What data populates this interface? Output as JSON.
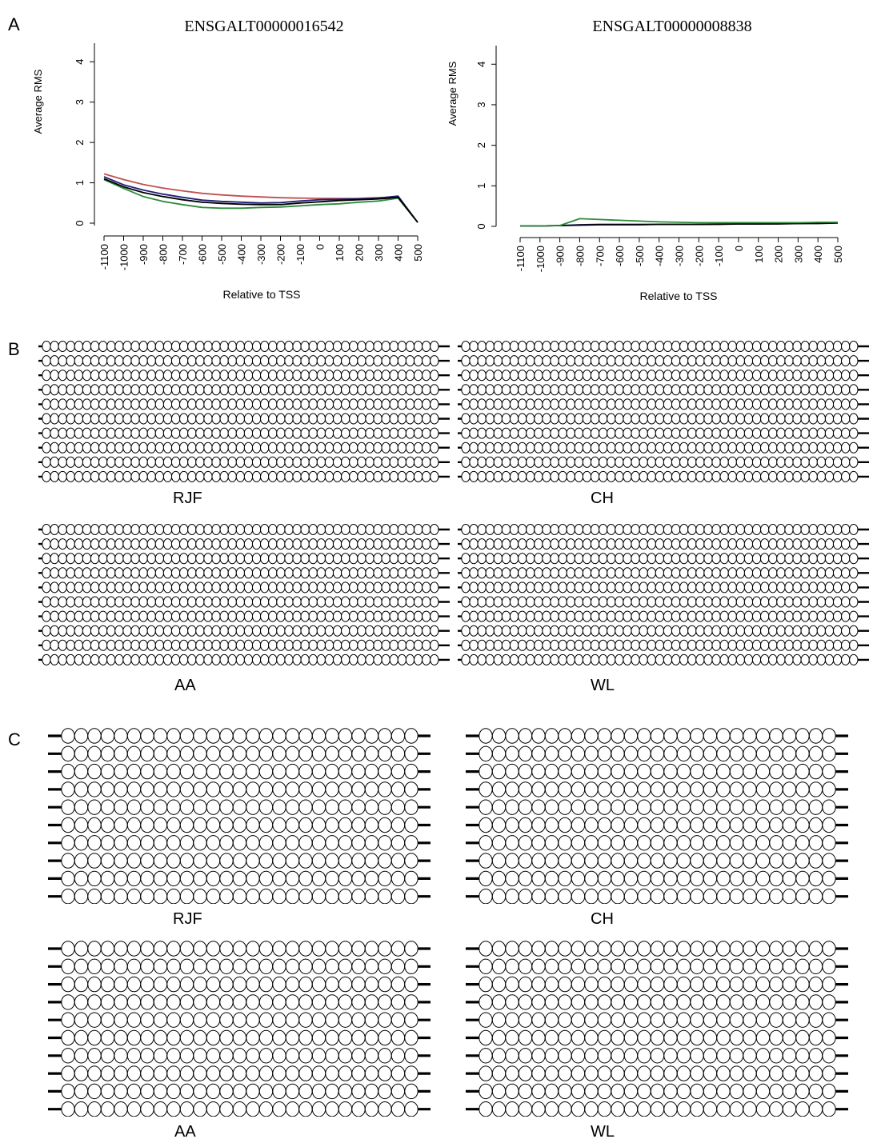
{
  "panels": {
    "a": "A",
    "b": "B",
    "c": "C"
  },
  "chart_data": [
    {
      "type": "line",
      "title": "ENSGALT00000016542",
      "xlabel": "Relative to TSS",
      "ylabel": "Average RMS",
      "x": [
        -1100,
        -1000,
        -900,
        -800,
        -700,
        -600,
        -500,
        -400,
        -300,
        -200,
        -100,
        0,
        100,
        200,
        300,
        400,
        500
      ],
      "x_tick_labels": [
        "-1100",
        "-1000",
        "-900",
        "-800",
        "-700",
        "-600",
        "-500",
        "-400",
        "-300",
        "-200",
        "-100",
        "0",
        "100",
        "200",
        "300",
        "400",
        "500"
      ],
      "y_ticks": [
        "0",
        "1",
        "2",
        "3",
        "4"
      ],
      "ylim": [
        0,
        4.4
      ],
      "xlim": [
        -1100,
        500
      ],
      "series": [
        {
          "color": "#c0504d",
          "values": [
            1.22,
            1.08,
            0.96,
            0.87,
            0.8,
            0.74,
            0.7,
            0.67,
            0.65,
            0.63,
            0.62,
            0.615,
            0.61,
            0.615,
            0.63,
            0.65,
            0.02
          ]
        },
        {
          "color": "#1f1f7a",
          "values": [
            1.15,
            0.95,
            0.82,
            0.72,
            0.64,
            0.57,
            0.54,
            0.52,
            0.5,
            0.51,
            0.55,
            0.58,
            0.59,
            0.6,
            0.62,
            0.67,
            0.02
          ]
        },
        {
          "color": "#2e8b3a",
          "values": [
            1.08,
            0.86,
            0.66,
            0.54,
            0.46,
            0.39,
            0.37,
            0.37,
            0.39,
            0.4,
            0.43,
            0.46,
            0.48,
            0.52,
            0.55,
            0.62,
            0.02
          ]
        },
        {
          "color": "#000000",
          "values": [
            1.1,
            0.9,
            0.76,
            0.66,
            0.58,
            0.52,
            0.49,
            0.47,
            0.46,
            0.46,
            0.5,
            0.53,
            0.56,
            0.58,
            0.6,
            0.64,
            0.02
          ]
        }
      ]
    },
    {
      "type": "line",
      "title": "ENSGALT00000008838",
      "xlabel": "Relative to TSS",
      "ylabel": "Average RMS",
      "x": [
        -1100,
        -1000,
        -900,
        -800,
        -700,
        -600,
        -500,
        -400,
        -300,
        -200,
        -100,
        0,
        100,
        200,
        300,
        400,
        500
      ],
      "x_tick_labels": [
        "-1100",
        "-1000",
        "-900",
        "-800",
        "-700",
        "-600",
        "-500",
        "-400",
        "-300",
        "-200",
        "-100",
        "0",
        "100",
        "200",
        "300",
        "400",
        "500"
      ],
      "y_ticks": [
        "0",
        "1",
        "2",
        "3",
        "4"
      ],
      "ylim": [
        0,
        4.4
      ],
      "xlim": [
        -1100,
        500
      ],
      "series": [
        {
          "color": "#1f1f7a",
          "values": [
            0.01,
            0.01,
            0.02,
            0.04,
            0.05,
            0.05,
            0.05,
            0.05,
            0.05,
            0.05,
            0.06,
            0.06,
            0.06,
            0.07,
            0.07,
            0.08,
            0.09
          ]
        },
        {
          "color": "#000000",
          "values": [
            0.01,
            0.01,
            0.02,
            0.03,
            0.04,
            0.04,
            0.04,
            0.05,
            0.05,
            0.05,
            0.05,
            0.06,
            0.06,
            0.06,
            0.07,
            0.07,
            0.08
          ]
        },
        {
          "color": "#2e8b3a",
          "values": [
            0.01,
            0.01,
            0.02,
            0.19,
            0.17,
            0.15,
            0.13,
            0.11,
            0.1,
            0.09,
            0.09,
            0.09,
            0.09,
            0.09,
            0.09,
            0.1,
            0.1
          ]
        }
      ]
    }
  ],
  "methylation_b": {
    "rows_per_group": 10,
    "sites_per_row": 49,
    "all_unmethylated": true,
    "groups": [
      "RJF",
      "CH",
      "AA",
      "WL"
    ]
  },
  "methylation_c": {
    "rows_per_group": 10,
    "sites_per_row": 27,
    "all_unmethylated": true,
    "groups": [
      "RJF",
      "CH",
      "AA",
      "WL"
    ]
  }
}
